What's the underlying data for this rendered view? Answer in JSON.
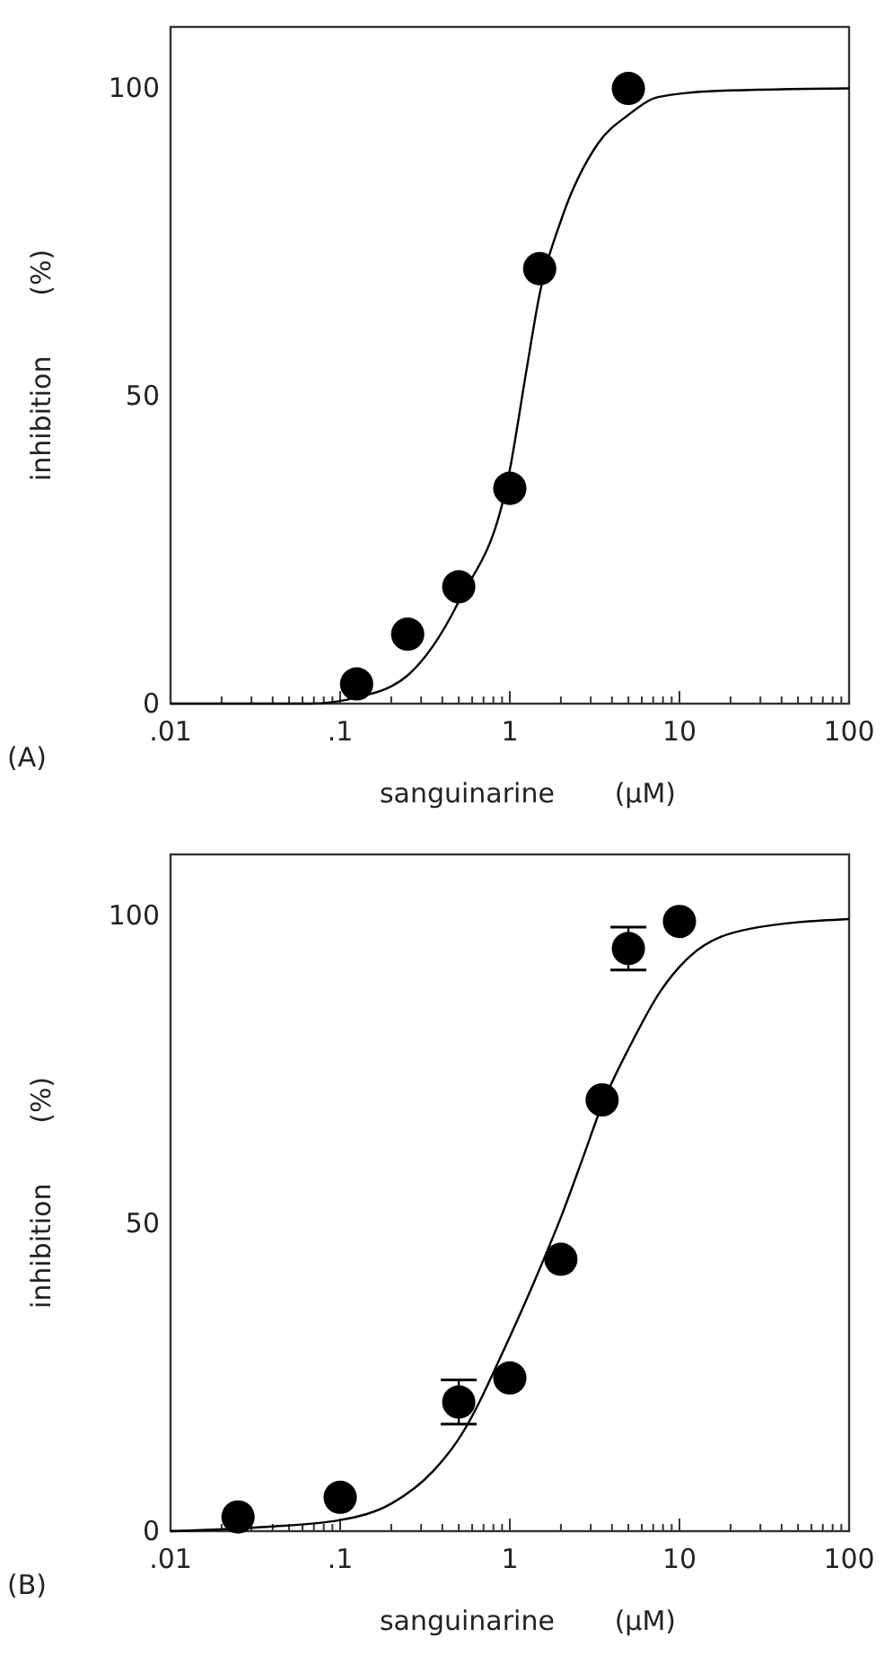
{
  "chart_data": [
    {
      "type": "scatter",
      "xlabel": "sanguinarine       (µM)",
      "ylabel": "inhibition       (%)",
      "annotations": [
        "(A)"
      ],
      "log": "x",
      "xlim": [
        0.01,
        100
      ],
      "ylim": [
        0,
        110
      ],
      "xticks": [
        {
          "value": 0.01,
          "label": ".01"
        },
        {
          "value": 0.02,
          "label": null
        },
        {
          "value": 0.03,
          "label": null
        },
        {
          "value": 0.04,
          "label": null
        },
        {
          "value": 0.05,
          "label": null
        },
        {
          "value": 0.06,
          "label": null
        },
        {
          "value": 0.07,
          "label": null
        },
        {
          "value": 0.08,
          "label": null
        },
        {
          "value": 0.09,
          "label": null
        },
        {
          "value": 0.1,
          "label": ".1"
        },
        {
          "value": 0.2,
          "label": null
        },
        {
          "value": 0.3,
          "label": null
        },
        {
          "value": 0.4,
          "label": null
        },
        {
          "value": 0.5,
          "label": null
        },
        {
          "value": 0.6,
          "label": null
        },
        {
          "value": 0.7,
          "label": null
        },
        {
          "value": 0.8,
          "label": null
        },
        {
          "value": 0.9,
          "label": null
        },
        1,
        {
          "value": 2,
          "label": null
        },
        {
          "value": 3,
          "label": null
        },
        {
          "value": 4,
          "label": null
        },
        {
          "value": 5,
          "label": null
        },
        {
          "value": 6,
          "label": null
        },
        {
          "value": 7,
          "label": null
        },
        {
          "value": 8,
          "label": null
        },
        {
          "value": 9,
          "label": null
        },
        10,
        {
          "value": 20,
          "label": null
        },
        {
          "value": 30,
          "label": null
        },
        {
          "value": 40,
          "label": null
        },
        {
          "value": 50,
          "label": null
        },
        {
          "value": 60,
          "label": null
        },
        {
          "value": 70,
          "label": null
        },
        {
          "value": 80,
          "label": null
        },
        {
          "value": 90,
          "label": null
        },
        100
      ],
      "yticks": [
        0,
        50,
        100
      ],
      "marker": "circle",
      "series": [
        {
          "color": "#000000",
          "x": [
            0.125,
            0.25,
            0.5,
            1,
            1.5,
            5
          ],
          "values": [
            3.2,
            11.3,
            19,
            35,
            70.7,
            100
          ]
        },
        {
          "type": "line",
          "color": "#000000",
          "marker": "none",
          "x": [
            0.01,
            0.0665,
            0.125,
            0.25,
            0.5,
            1,
            1.25,
            1.5,
            2.03,
            3.3,
            5,
            7.5,
            16.8,
            100
          ],
          "values": [
            0,
            0,
            1,
            4.6,
            16.6,
            38,
            54,
            66.6,
            79,
            91,
            95.7,
            98.6,
            99.6,
            100
          ]
        }
      ]
    },
    {
      "type": "scatter",
      "xlabel": "sanguinarine       (µM)",
      "ylabel": "inhibition       (%)",
      "annotations": [
        "(B)"
      ],
      "log": "x",
      "xlim": [
        0.01,
        100
      ],
      "ylim": [
        0,
        110
      ],
      "xticks": [
        {
          "value": 0.01,
          "label": ".01"
        },
        {
          "value": 0.02,
          "label": null
        },
        {
          "value": 0.03,
          "label": null
        },
        {
          "value": 0.04,
          "label": null
        },
        {
          "value": 0.05,
          "label": null
        },
        {
          "value": 0.06,
          "label": null
        },
        {
          "value": 0.07,
          "label": null
        },
        {
          "value": 0.08,
          "label": null
        },
        {
          "value": 0.09,
          "label": null
        },
        {
          "value": 0.1,
          "label": ".1"
        },
        {
          "value": 0.2,
          "label": null
        },
        {
          "value": 0.3,
          "label": null
        },
        {
          "value": 0.4,
          "label": null
        },
        {
          "value": 0.5,
          "label": null
        },
        {
          "value": 0.6,
          "label": null
        },
        {
          "value": 0.7,
          "label": null
        },
        {
          "value": 0.8,
          "label": null
        },
        {
          "value": 0.9,
          "label": null
        },
        1,
        {
          "value": 2,
          "label": null
        },
        {
          "value": 3,
          "label": null
        },
        {
          "value": 4,
          "label": null
        },
        {
          "value": 5,
          "label": null
        },
        {
          "value": 6,
          "label": null
        },
        {
          "value": 7,
          "label": null
        },
        {
          "value": 8,
          "label": null
        },
        {
          "value": 9,
          "label": null
        },
        10,
        {
          "value": 20,
          "label": null
        },
        {
          "value": 30,
          "label": null
        },
        {
          "value": 40,
          "label": null
        },
        {
          "value": 50,
          "label": null
        },
        {
          "value": 60,
          "label": null
        },
        {
          "value": 70,
          "label": null
        },
        {
          "value": 80,
          "label": null
        },
        {
          "value": 90,
          "label": null
        },
        100
      ],
      "yticks": [
        0,
        50,
        100
      ],
      "marker": "circle",
      "series": [
        {
          "color": "#000000",
          "x": [
            0.025,
            0.1,
            0.5,
            1,
            2,
            3.5,
            5,
            10
          ],
          "values": [
            2.3,
            5.5,
            21,
            24.9,
            44.2,
            70.1,
            94.7,
            99.1
          ],
          "errors": [
            null,
            null,
            3.6,
            null,
            null,
            null,
            3.5,
            null
          ]
        },
        {
          "type": "line",
          "color": "#000000",
          "marker": "none",
          "x": [
            0.01,
            0.0366,
            0.1,
            0.201,
            0.354,
            0.5,
            1,
            1.52,
            2,
            2.69,
            3.5,
            5.14,
            7.7,
            11.6,
            26,
            100
          ],
          "values": [
            0,
            0.7,
            1.8,
            4.5,
            9.8,
            15,
            31.6,
            43,
            51,
            60.6,
            69.3,
            79,
            87.7,
            93.5,
            97.9,
            99.5
          ]
        }
      ]
    }
  ]
}
